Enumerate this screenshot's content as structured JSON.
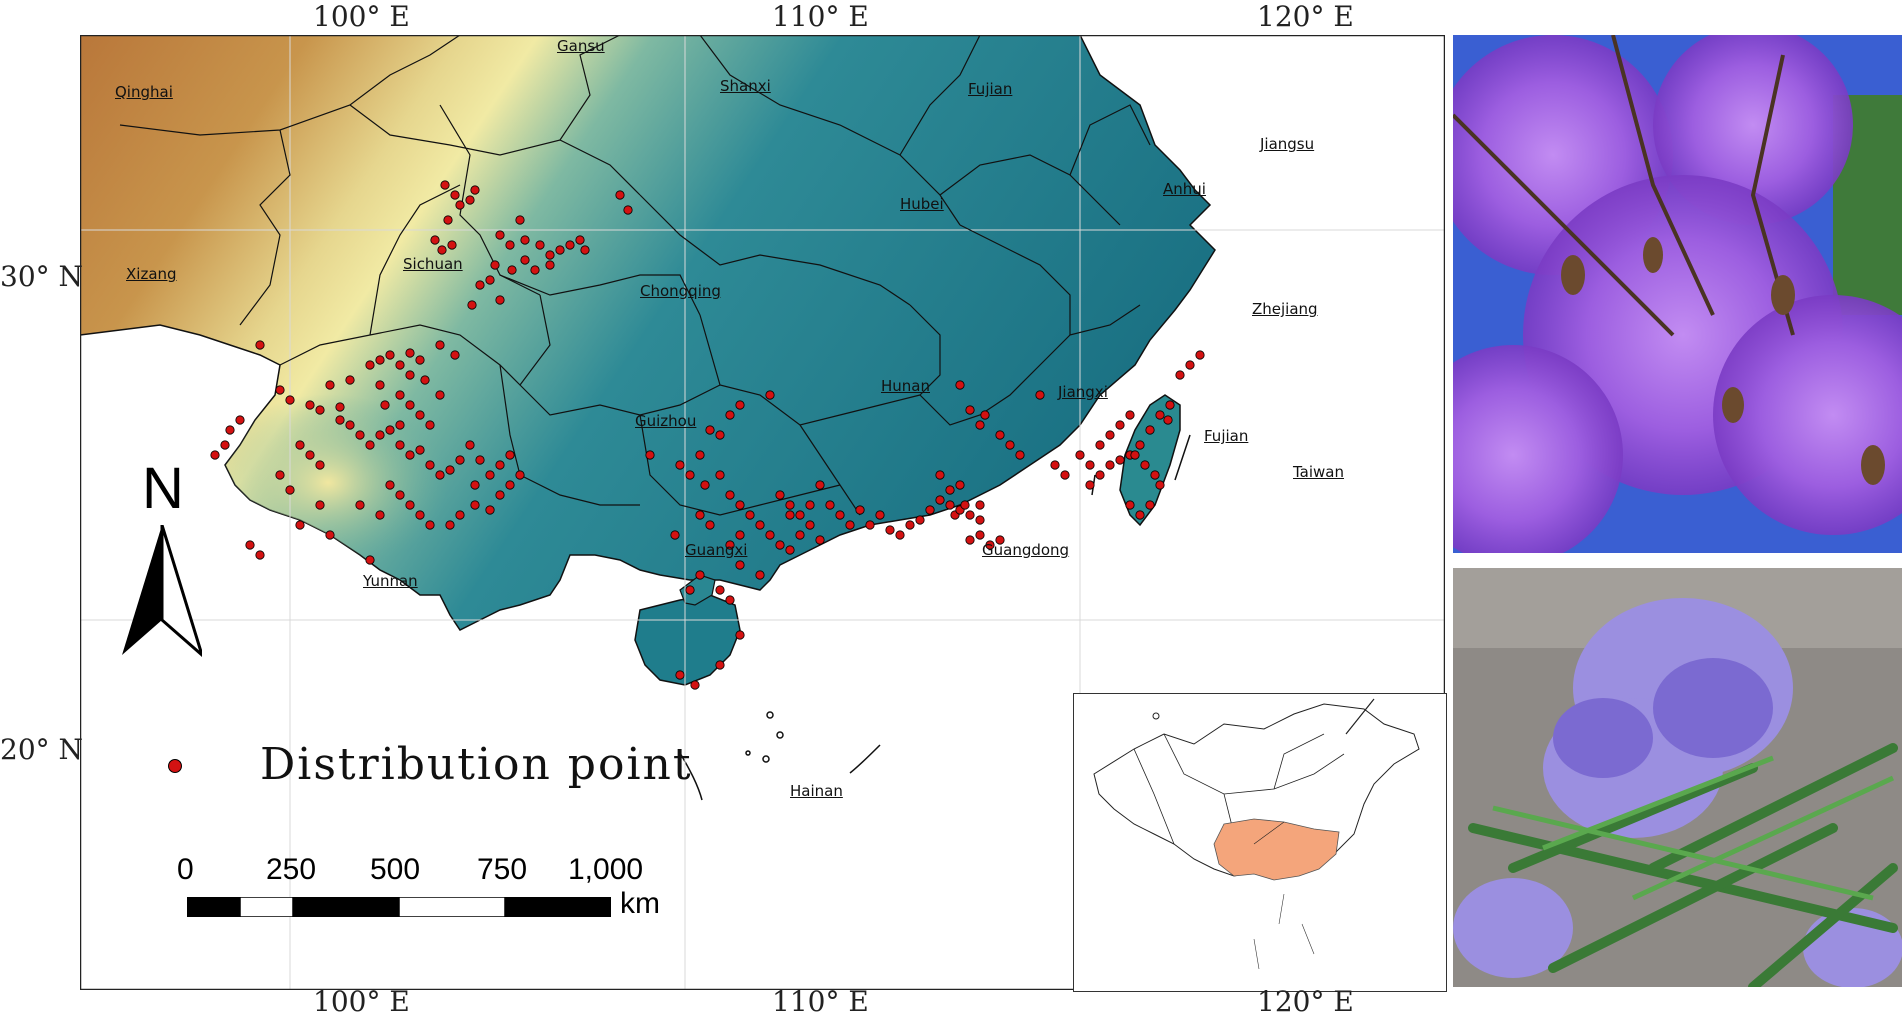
{
  "map": {
    "lon_labels": [
      "100° E",
      "110° E",
      "120° E"
    ],
    "lat_labels": [
      "30° N",
      "20° N"
    ],
    "north_label": "N",
    "scale": {
      "ticks": [
        "0",
        "250",
        "500",
        "750",
        "1,000"
      ],
      "unit": "km"
    },
    "legend": {
      "label": "Distribution point",
      "marker_color": "#d31212"
    },
    "provinces": [
      {
        "name": "Qinghai"
      },
      {
        "name": "Gansu"
      },
      {
        "name": "Shanxi"
      },
      {
        "name": "Fujian"
      },
      {
        "name": "Jiangsu"
      },
      {
        "name": "Anhui"
      },
      {
        "name": "Hubei"
      },
      {
        "name": "Xizang"
      },
      {
        "name": "Sichuan"
      },
      {
        "name": "Chongqing"
      },
      {
        "name": "Zhejiang"
      },
      {
        "name": "Hunan"
      },
      {
        "name": "Jiangxi"
      },
      {
        "name": "Guizhou"
      },
      {
        "name": "Fujian"
      },
      {
        "name": "Taiwan"
      },
      {
        "name": "Yunnan"
      },
      {
        "name": "Guangxi"
      },
      {
        "name": "Guangdong"
      },
      {
        "name": "Hainan"
      }
    ],
    "colors": {
      "lowland": "#1f7d8c",
      "midland": "#e8e29a",
      "highland": "#b5783a",
      "point": "#d31212",
      "inset_highlight": "#f4a57b"
    }
  },
  "photos": [
    {
      "subject": "jacaranda-tree-flowers-photo"
    },
    {
      "subject": "jacaranda-flowers-leaves-photo"
    }
  ]
}
